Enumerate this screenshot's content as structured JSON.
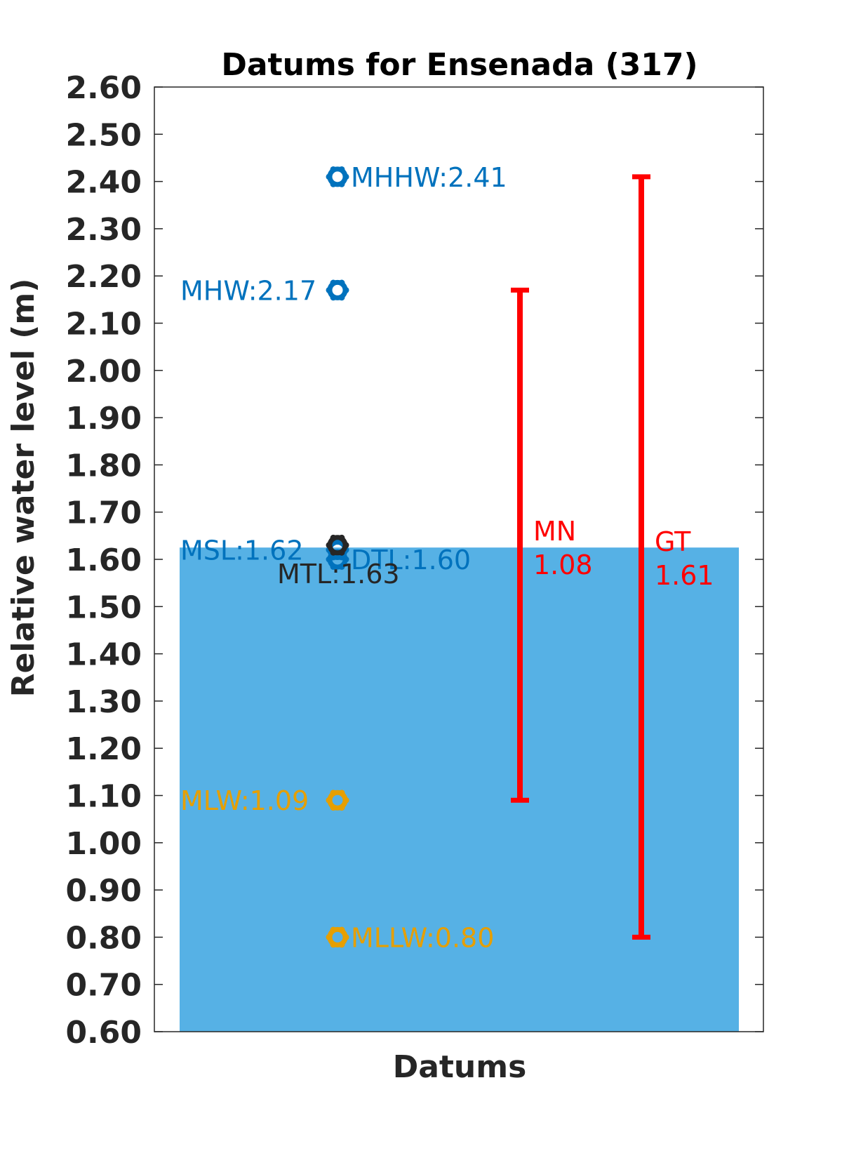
{
  "chart_data": {
    "type": "bar",
    "title": "Datums for Ensenada (317)",
    "xlabel": "Datums",
    "ylabel": "Relative water level (m)",
    "ylim": [
      0.6,
      2.6
    ],
    "yticks": [
      "0.60",
      "0.70",
      "0.80",
      "0.90",
      "1.00",
      "1.10",
      "1.20",
      "1.30",
      "1.40",
      "1.50",
      "1.60",
      "1.70",
      "1.80",
      "1.90",
      "2.00",
      "2.10",
      "2.20",
      "2.30",
      "2.40",
      "2.50",
      "2.60"
    ],
    "grid": false,
    "bar": {
      "value": 1.625,
      "color": "#56b1e5"
    },
    "datums": [
      {
        "name": "MHHW",
        "value": 2.41,
        "label": "MHHW:2.41",
        "color": "#0072bd",
        "side": "right"
      },
      {
        "name": "MHW",
        "value": 2.17,
        "label": "MHW:2.17",
        "color": "#0072bd",
        "side": "left"
      },
      {
        "name": "MSL",
        "value": 1.62,
        "label": "MSL:1.62",
        "color": "#0072bd",
        "side": "left"
      },
      {
        "name": "DTL",
        "value": 1.6,
        "label": "DTL:1.60",
        "color": "#0072bd",
        "side": "right"
      },
      {
        "name": "MTL",
        "value": 1.63,
        "label": "MTL:1.63",
        "color": "#262626",
        "side": "below"
      },
      {
        "name": "MLW",
        "value": 1.09,
        "label": "MLW:1.09",
        "color": "#e69f00",
        "side": "left"
      },
      {
        "name": "MLLW",
        "value": 0.8,
        "label": "MLLW:0.80",
        "color": "#e69f00",
        "side": "right"
      }
    ],
    "ranges": [
      {
        "name": "MN",
        "value": "1.08",
        "low": 1.09,
        "high": 2.17,
        "color": "#ff0000"
      },
      {
        "name": "GT",
        "value": "1.61",
        "low": 0.8,
        "high": 2.41,
        "color": "#ff0000"
      }
    ]
  }
}
